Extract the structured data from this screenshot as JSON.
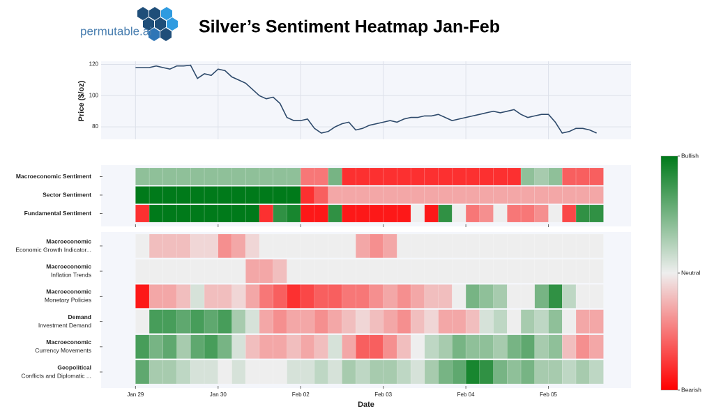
{
  "header": {
    "logo_text": "permutable.ai",
    "title": "Silver’s Sentiment Heatmap Jan-Feb"
  },
  "chart_data": [
    {
      "type": "line",
      "ylabel": "Price ($/oz)",
      "color": "#2e4a6b",
      "grid": true,
      "xlim": [
        -10,
        144
      ],
      "ylim": [
        72,
        122
      ],
      "yticks": [
        80,
        100,
        120
      ],
      "xticks": [
        0,
        24,
        48,
        72,
        96,
        120
      ],
      "x": [
        0,
        2,
        4,
        6,
        8,
        10,
        12,
        14,
        16,
        18,
        20,
        22,
        24,
        26,
        28,
        30,
        32,
        34,
        36,
        38,
        40,
        42,
        44,
        46,
        48,
        50,
        52,
        54,
        56,
        58,
        60,
        62,
        64,
        66,
        68,
        70,
        72,
        74,
        76,
        78,
        80,
        82,
        84,
        86,
        88,
        90,
        92,
        94,
        96,
        98,
        100,
        102,
        104,
        106,
        108,
        110,
        112,
        114,
        116,
        118,
        120,
        122,
        124,
        126,
        128,
        130,
        132,
        134
      ],
      "values": [
        118,
        118,
        118,
        119,
        118,
        117,
        119,
        119,
        119.5,
        111,
        114,
        113,
        117,
        116,
        112,
        110,
        108,
        104,
        100,
        98,
        99,
        95,
        86,
        84,
        84,
        85,
        79,
        76,
        77,
        80,
        82,
        83,
        78,
        79,
        81,
        82,
        83,
        84,
        83,
        85,
        86,
        86,
        87,
        87,
        88,
        86,
        84,
        85,
        86,
        87,
        88,
        89,
        90,
        89,
        90,
        91,
        88,
        86,
        87,
        88,
        88,
        83,
        76,
        77,
        79,
        79,
        78,
        76
      ]
    },
    {
      "type": "heatmap",
      "xlim": [
        -10,
        144
      ],
      "xticks": [
        0,
        24,
        48,
        72,
        96,
        120
      ],
      "colorscale": {
        "zlim": [
          -1,
          1
        ],
        "colors": [
          "#ff0000",
          "#eeeeee",
          "#007a1a"
        ]
      },
      "x": [
        0,
        4,
        8,
        12,
        16,
        20,
        24,
        28,
        32,
        36,
        40,
        44,
        48,
        52,
        56,
        60,
        64,
        68,
        72,
        76,
        80,
        84,
        88,
        92,
        96,
        100,
        104,
        108,
        112,
        116,
        120,
        124,
        128,
        132
      ],
      "rows": [
        {
          "label": "Macroeconomic Sentiment",
          "values": [
            0.4,
            0.4,
            0.4,
            0.4,
            0.4,
            0.4,
            0.4,
            0.4,
            0.4,
            0.4,
            0.4,
            0.4,
            -0.5,
            -0.5,
            0.5,
            -0.8,
            -0.8,
            -0.8,
            -0.8,
            -0.8,
            -0.8,
            -0.8,
            -0.8,
            -0.8,
            -0.8,
            -0.8,
            -0.8,
            -0.8,
            0.4,
            0.3,
            0.4,
            -0.6,
            -0.6,
            -0.6
          ]
        },
        {
          "label": "Sector Sentiment",
          "values": [
            1,
            1,
            1,
            1,
            1,
            1,
            1,
            1,
            1,
            1,
            1,
            1,
            -0.8,
            -0.6,
            -0.3,
            -0.3,
            -0.3,
            -0.3,
            -0.3,
            -0.3,
            -0.3,
            -0.3,
            -0.3,
            -0.3,
            -0.3,
            -0.3,
            -0.3,
            -0.3,
            -0.3,
            -0.3,
            -0.3,
            -0.3,
            -0.3,
            -0.3
          ]
        },
        {
          "label": "Fundamental Sentiment",
          "values": [
            -0.8,
            1,
            1,
            1,
            1,
            1,
            1,
            1,
            1,
            -0.8,
            0.8,
            0.9,
            -0.9,
            -0.9,
            0.8,
            -0.9,
            -0.9,
            -0.9,
            -0.9,
            -0.9,
            0,
            -0.9,
            0.8,
            0,
            -0.5,
            -0.4,
            0,
            -0.5,
            -0.5,
            -0.4,
            0,
            -0.7,
            0.8,
            0.8
          ]
        }
      ]
    },
    {
      "type": "heatmap",
      "xlim": [
        -10,
        144
      ],
      "xlabel": "Date",
      "xticks": [
        {
          "value": 0,
          "label": "Jan 29"
        },
        {
          "value": 24,
          "label": "Jan 30"
        },
        {
          "value": 48,
          "label": "Feb 02"
        },
        {
          "value": 72,
          "label": "Feb 03"
        },
        {
          "value": 96,
          "label": "Feb 04"
        },
        {
          "value": 120,
          "label": "Feb 05"
        }
      ],
      "colorscale": {
        "zlim": [
          -1,
          1
        ],
        "colors": [
          "#ff0000",
          "#eeeeee",
          "#007a1a"
        ]
      },
      "colorbar_ticks": [
        {
          "value": 1,
          "label": "Bullish"
        },
        {
          "value": 0,
          "label": "Neutral"
        },
        {
          "value": -1,
          "label": "Bearish"
        }
      ],
      "x": [
        0,
        4,
        8,
        12,
        16,
        20,
        24,
        28,
        32,
        36,
        40,
        44,
        48,
        52,
        56,
        60,
        64,
        68,
        72,
        76,
        80,
        84,
        88,
        92,
        96,
        100,
        104,
        108,
        112,
        116,
        120,
        124,
        128,
        132
      ],
      "rows": [
        {
          "group": "Macroeconomic",
          "label": "Economic Growth Indicator...",
          "values": [
            0,
            -0.2,
            -0.2,
            -0.2,
            -0.1,
            -0.1,
            -0.4,
            -0.3,
            -0.1,
            0,
            0,
            0,
            0,
            0,
            0,
            0,
            -0.3,
            -0.4,
            -0.3,
            0,
            0,
            0,
            0,
            0,
            0,
            0,
            0,
            0,
            0,
            0,
            0,
            0,
            0,
            0
          ]
        },
        {
          "group": "Macroeconomic",
          "label": "Inflation Trends",
          "values": [
            0,
            0,
            0,
            0,
            0,
            0,
            0,
            0,
            -0.3,
            -0.3,
            -0.2,
            0,
            0,
            0,
            0,
            0,
            0,
            0,
            0,
            0,
            0,
            0,
            0,
            0,
            0,
            0,
            0,
            0,
            0,
            0,
            0,
            0,
            0,
            0
          ]
        },
        {
          "group": "Macroeconomic",
          "label": "Monetary Policies",
          "values": [
            -0.9,
            -0.3,
            -0.3,
            -0.2,
            0.1,
            -0.2,
            -0.2,
            -0.1,
            -0.3,
            -0.5,
            -0.6,
            -0.8,
            -0.7,
            -0.6,
            -0.6,
            -0.5,
            -0.5,
            -0.4,
            -0.3,
            -0.4,
            -0.3,
            -0.2,
            -0.2,
            0,
            0.5,
            0.4,
            0.3,
            0,
            0,
            0.5,
            0.8,
            0.2,
            0,
            0
          ]
        },
        {
          "group": "Demand",
          "label": "Investment Demand",
          "values": [
            0,
            0.7,
            0.7,
            0.6,
            0.7,
            0.6,
            0.7,
            0.3,
            0.1,
            -0.3,
            -0.4,
            -0.3,
            -0.3,
            -0.4,
            -0.3,
            -0.2,
            -0.1,
            -0.2,
            -0.3,
            -0.4,
            -0.2,
            -0.1,
            -0.3,
            -0.3,
            -0.2,
            0.1,
            0.2,
            0,
            0.3,
            0.2,
            0.4,
            0,
            -0.3,
            -0.3
          ]
        },
        {
          "group": "Macroeconomic",
          "label": "Currency Movements",
          "values": [
            0.7,
            0.5,
            0.6,
            0.3,
            0.6,
            0.7,
            0.5,
            0.1,
            -0.2,
            -0.3,
            -0.3,
            -0.2,
            -0.3,
            -0.2,
            0.1,
            -0.3,
            -0.6,
            -0.6,
            -0.4,
            -0.2,
            0,
            0.2,
            0.3,
            0.5,
            0.4,
            0.4,
            0.3,
            0.5,
            0.6,
            0.3,
            0.4,
            -0.2,
            -0.4,
            -0.3
          ]
        },
        {
          "group": "Geopolitical",
          "label": "Conflicts and Diplomatic ...",
          "values": [
            0.6,
            0.3,
            0.3,
            0.2,
            0.1,
            0.1,
            0,
            0.1,
            0,
            0,
            0,
            0.1,
            0.1,
            0.2,
            0.1,
            0.3,
            0.2,
            0.3,
            0.3,
            0.2,
            0.1,
            0.3,
            0.5,
            0.6,
            0.9,
            0.8,
            0.5,
            0.4,
            0.5,
            0.3,
            0.3,
            0.2,
            0.3,
            0.2
          ]
        }
      ]
    }
  ]
}
